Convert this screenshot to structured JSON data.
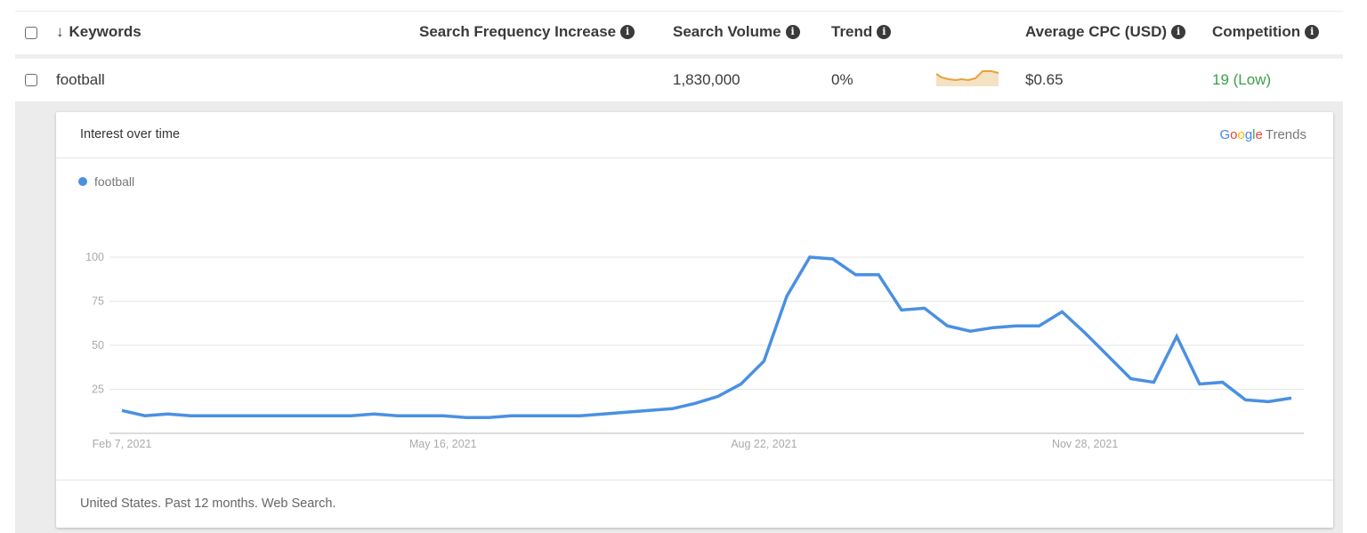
{
  "table": {
    "columns": [
      {
        "key": "select",
        "label": ""
      },
      {
        "key": "keywords",
        "label": "Keywords",
        "sort_icon": "arrow-down-icon"
      },
      {
        "key": "search_frequency_increase",
        "label": "Search Frequency Increase",
        "info_icon": "info-icon"
      },
      {
        "key": "search_volume",
        "label": "Search Volume",
        "info_icon": "info-icon"
      },
      {
        "key": "trend",
        "label": "Trend",
        "info_icon": "info-icon"
      },
      {
        "key": "average_cpc",
        "label": "Average CPC (USD)",
        "info_icon": "info-icon"
      },
      {
        "key": "competition",
        "label": "Competition",
        "info_icon": "info-icon"
      }
    ],
    "rows": [
      {
        "keyword": "football",
        "search_frequency_increase": "",
        "search_volume": "1,830,000",
        "trend": "0%",
        "average_cpc": "$0.65",
        "competition": "19 (Low)",
        "competition_color": "#3aa04a",
        "sparkline_color": "#e8a23a",
        "sparkline_fill": "#f5e2c4"
      }
    ]
  },
  "trends_card": {
    "title": "Interest over time",
    "logo": {
      "google": "Google",
      "trends": "Trends"
    },
    "footer": "United States. Past 12 months. Web Search."
  },
  "chart_data": {
    "type": "line",
    "title": "Interest over time",
    "xlabel": "",
    "ylabel": "",
    "ylim": [
      0,
      100
    ],
    "yticks": [
      25,
      50,
      75,
      100
    ],
    "xtick_labels": [
      "Feb 7, 2021",
      "May 16, 2021",
      "Aug 22, 2021",
      "Nov 28, 2021"
    ],
    "xtick_indices": [
      0,
      14,
      28,
      42
    ],
    "grid": true,
    "legend_position": "top-left",
    "series": [
      {
        "name": "football",
        "color": "#4a90e2",
        "values": [
          13,
          10,
          11,
          10,
          10,
          10,
          10,
          10,
          10,
          10,
          10,
          11,
          10,
          10,
          10,
          9,
          9,
          10,
          10,
          10,
          10,
          11,
          12,
          13,
          14,
          17,
          21,
          28,
          41,
          78,
          100,
          99,
          90,
          90,
          70,
          71,
          61,
          58,
          60,
          61,
          61,
          69,
          57,
          44,
          31,
          29,
          55,
          28,
          29,
          19,
          18,
          20
        ]
      }
    ]
  }
}
